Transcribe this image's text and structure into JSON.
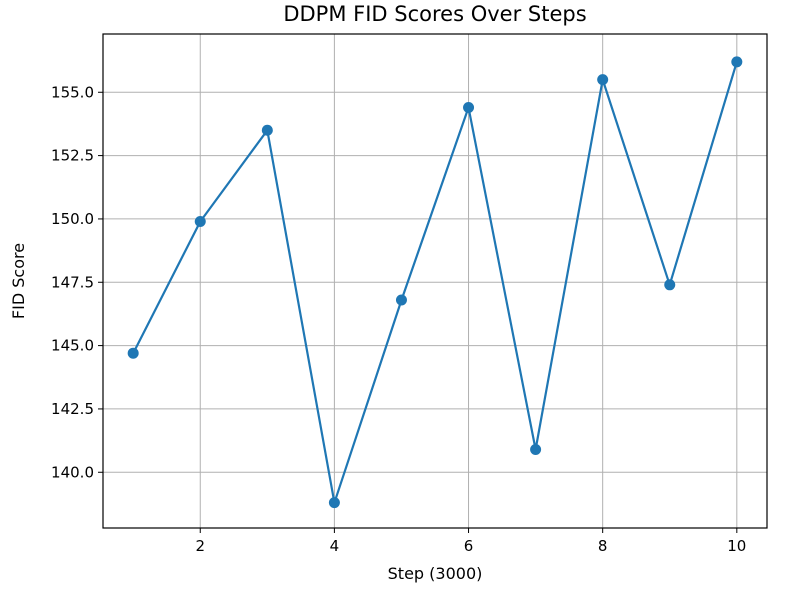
{
  "chart_data": {
    "type": "line",
    "title": "DDPM FID Scores Over Steps",
    "xlabel": "Step (3000)",
    "ylabel": "FID Score",
    "x": [
      1,
      2,
      3,
      4,
      5,
      6,
      7,
      8,
      9,
      10
    ],
    "series": [
      {
        "values": [
          144.7,
          149.9,
          153.5,
          138.8,
          146.8,
          154.4,
          140.9,
          155.5,
          147.4,
          156.2
        ],
        "color": "#1f77b4",
        "marker": "circle"
      }
    ],
    "xlim": [
      0.55,
      10.45
    ],
    "ylim": [
      137.8,
      157.3
    ],
    "xticks": [
      2,
      4,
      6,
      8,
      10
    ],
    "xtick_labels": [
      "2",
      "4",
      "6",
      "8",
      "10"
    ],
    "yticks": [
      140.0,
      142.5,
      145.0,
      147.5,
      150.0,
      152.5,
      155.0
    ],
    "ytick_labels": [
      "140.0",
      "142.5",
      "145.0",
      "147.5",
      "150.0",
      "152.5",
      "155.0"
    ],
    "grid": true
  }
}
